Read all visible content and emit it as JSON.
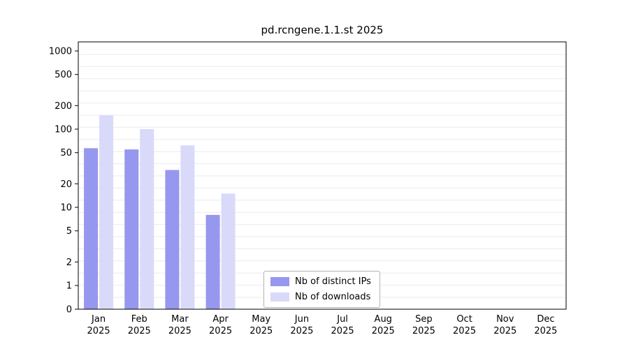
{
  "chart_data": {
    "type": "bar",
    "title": "pd.rcngene.1.1.st 2025",
    "year_label": "2025",
    "categories": [
      "Jan",
      "Feb",
      "Mar",
      "Apr",
      "May",
      "Jun",
      "Jul",
      "Aug",
      "Sep",
      "Oct",
      "Nov",
      "Dec"
    ],
    "series": [
      {
        "name": "Nb of distinct IPs",
        "color": "#9697ee",
        "values": [
          57,
          55,
          30,
          8,
          0,
          0,
          0,
          0,
          0,
          0,
          0,
          0
        ]
      },
      {
        "name": "Nb of downloads",
        "color": "#d9dafa",
        "values": [
          150,
          100,
          62,
          15,
          0,
          0,
          0,
          0,
          0,
          0,
          0,
          0
        ]
      }
    ],
    "y_axis": {
      "scale": "log",
      "ticks": [
        0,
        1,
        2,
        5,
        10,
        20,
        50,
        100,
        200,
        500,
        1000
      ],
      "ylim": [
        0,
        1300
      ]
    },
    "xlabel": "",
    "ylabel": "",
    "grid": "horizontal-light",
    "legend_position": "bottom-center-inside"
  },
  "colors": {
    "background": "#ffffff",
    "axis": "#000000",
    "grid": "#ebebeb",
    "text": "#000000",
    "legend_border": "#b3b3b3"
  }
}
